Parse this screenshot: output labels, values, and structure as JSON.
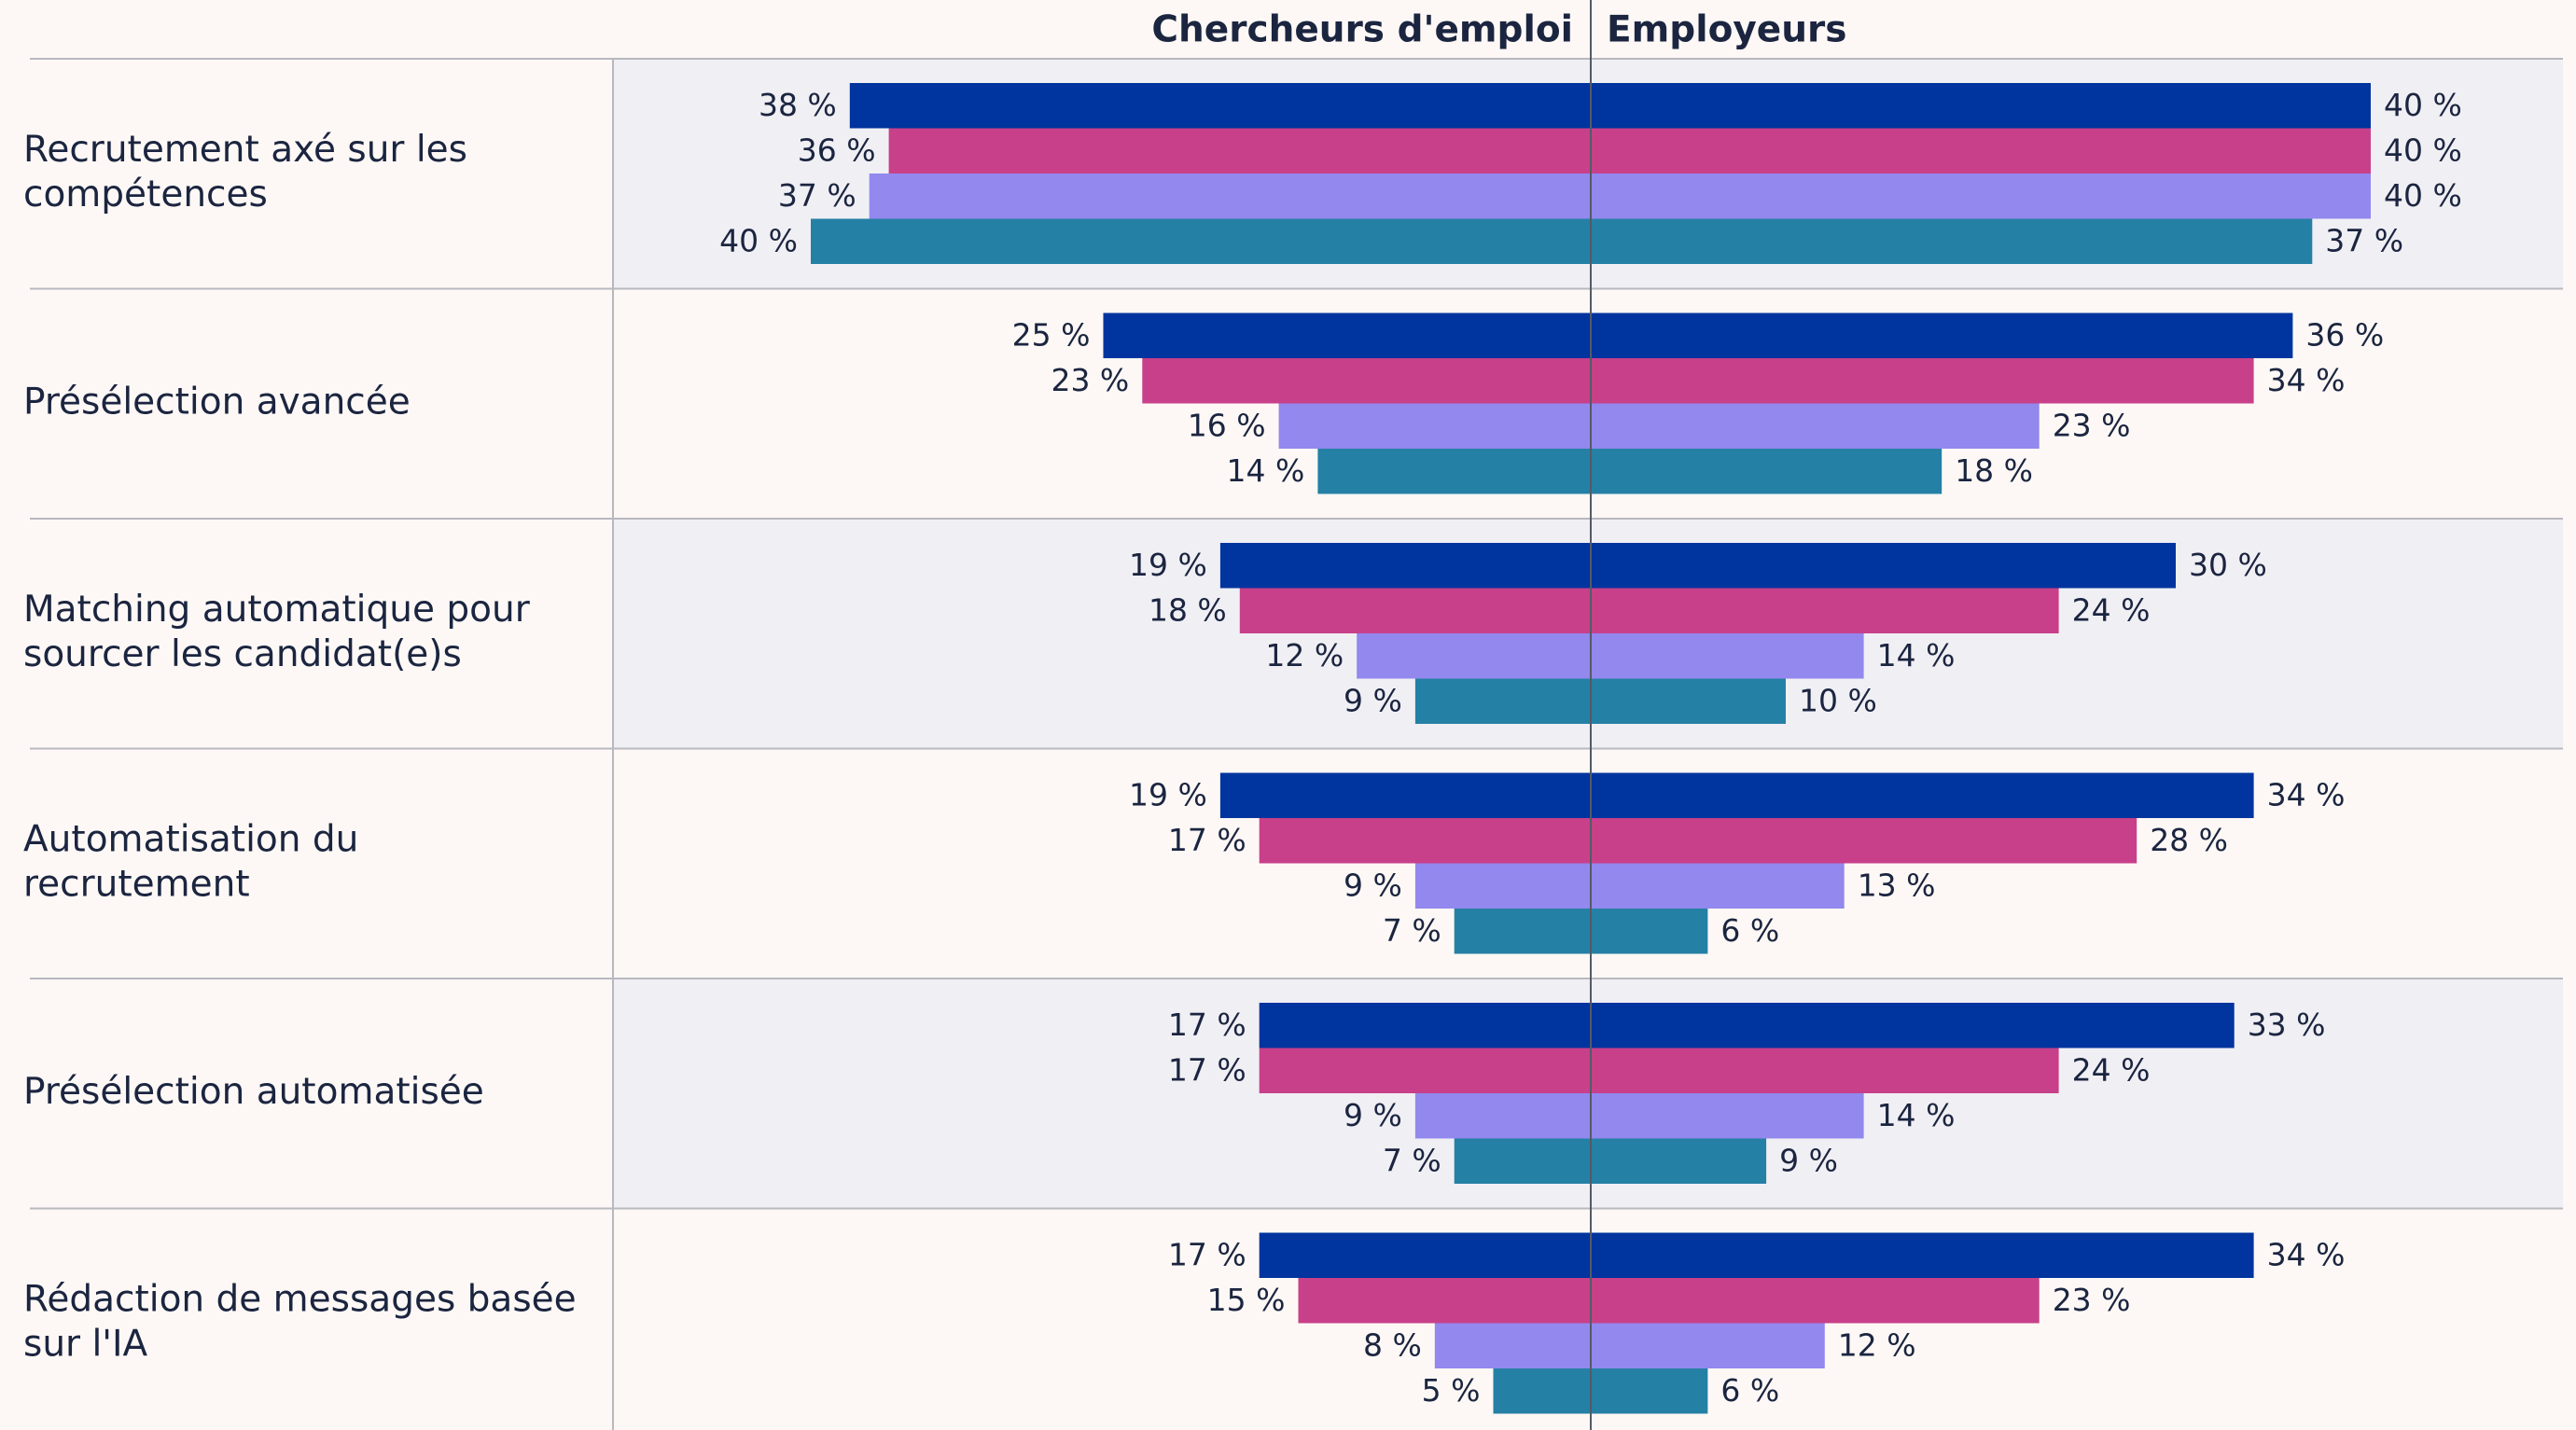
{
  "chart_data": {
    "type": "butterfly",
    "left_title": "Chercheurs d'emploi",
    "right_title": "Employeurs",
    "categories": [
      [
        "Recrutement axé sur les",
        "compétences"
      ],
      [
        "Présélection avancée"
      ],
      [
        "Matching automatique pour",
        "sourcer les candidat(e)s"
      ],
      [
        "Automatisation du",
        "recrutement"
      ],
      [
        "Présélection automatisée"
      ],
      [
        "Rédaction de messages basée",
        "sur l'IA"
      ]
    ],
    "xlim": [
      0,
      50
    ],
    "left_series": [
      {
        "color": "#00349e",
        "values": [
          38,
          25,
          19,
          19,
          17,
          17
        ],
        "value_labels": [
          "38 %",
          "25 %",
          "19 %",
          "19 %",
          "17 %",
          "17 %"
        ]
      },
      {
        "color": "#c8408a",
        "values": [
          36,
          23,
          18,
          17,
          17,
          15
        ],
        "value_labels": [
          "36 %",
          "23 %",
          "18 %",
          "17 %",
          "17 %",
          "15 %"
        ]
      },
      {
        "color": "#9288ee",
        "values": [
          37,
          16,
          12,
          9,
          9,
          8
        ],
        "value_labels": [
          "37 %",
          "16 %",
          "12 %",
          "9 %",
          "9 %",
          "8 %"
        ]
      },
      {
        "color": "#2580a5",
        "values": [
          40,
          14,
          9,
          7,
          7,
          5
        ],
        "value_labels": [
          "40 %",
          "14 %",
          "9 %",
          "7 %",
          "7 %",
          "5 %"
        ]
      }
    ],
    "right_series": [
      {
        "color": "#00349e",
        "values": [
          40,
          36,
          30,
          34,
          33,
          34
        ],
        "value_labels": [
          "40 %",
          "36 %",
          "30 %",
          "34 %",
          "33 %",
          "34 %"
        ]
      },
      {
        "color": "#c8408a",
        "values": [
          40,
          34,
          24,
          28,
          24,
          23
        ],
        "value_labels": [
          "40 %",
          "34 %",
          "24 %",
          "28 %",
          "24 %",
          "23 %"
        ]
      },
      {
        "color": "#9288ee",
        "values": [
          40,
          23,
          14,
          13,
          14,
          12
        ],
        "value_labels": [
          "40 %",
          "23 %",
          "14 %",
          "13 %",
          "14 %",
          "12 %"
        ]
      },
      {
        "color": "#2580a5",
        "values": [
          37,
          18,
          10,
          6,
          9,
          6
        ],
        "value_labels": [
          "37 %",
          "18 %",
          "10 %",
          "6 %",
          "9 %",
          "6 %"
        ]
      }
    ]
  }
}
